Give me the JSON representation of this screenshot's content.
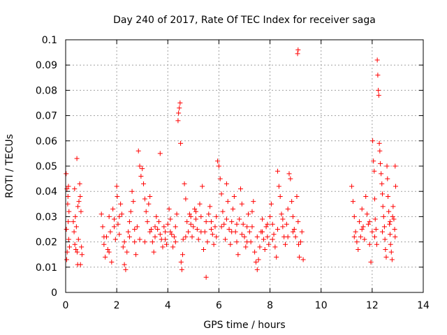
{
  "chart_data": {
    "type": "scatter",
    "title": "Day 240 of 2017, Rate Of TEC Index for receiver saga",
    "xlabel": "GPS time / hours",
    "ylabel": "ROTI / TECUs",
    "xlim": [
      0,
      14
    ],
    "ylim": [
      0,
      0.1
    ],
    "x_ticks": [
      0,
      2,
      4,
      6,
      8,
      10,
      12,
      14
    ],
    "x_tick_labels": [
      "0",
      "2",
      "4",
      "6",
      "8",
      "10",
      "12",
      "14"
    ],
    "y_ticks": [
      0,
      0.01,
      0.02,
      0.03,
      0.04,
      0.05,
      0.06,
      0.07,
      0.08,
      0.09,
      0.1
    ],
    "y_tick_labels": [
      "0",
      "0.01",
      "0.02",
      "0.03",
      "0.04",
      "0.05",
      "0.06",
      "0.07",
      "0.08",
      "0.09",
      "0.1"
    ],
    "grid": true,
    "marker": "+",
    "color": "#ff0000",
    "series": [
      {
        "name": "ROTI",
        "points": [
          [
            0.02,
            0.047
          ],
          [
            0.05,
            0.041
          ],
          [
            0.08,
            0.035
          ],
          [
            0.1,
            0.028
          ],
          [
            0.12,
            0.021
          ],
          [
            0.15,
            0.018
          ],
          [
            0.03,
            0.025
          ],
          [
            0.06,
            0.016
          ],
          [
            0.09,
            0.038
          ],
          [
            0.11,
            0.042
          ],
          [
            0.13,
            0.032
          ],
          [
            0.04,
            0.013
          ],
          [
            0.3,
            0.028
          ],
          [
            0.33,
            0.024
          ],
          [
            0.36,
            0.019
          ],
          [
            0.38,
            0.03
          ],
          [
            0.4,
            0.017
          ],
          [
            0.42,
            0.026
          ],
          [
            0.44,
            0.053
          ],
          [
            0.45,
            0.016
          ],
          [
            0.47,
            0.011
          ],
          [
            0.5,
            0.021
          ],
          [
            0.52,
            0.036
          ],
          [
            0.55,
            0.043
          ],
          [
            0.57,
            0.038
          ],
          [
            0.6,
            0.032
          ],
          [
            0.62,
            0.018
          ],
          [
            0.64,
            0.015
          ],
          [
            0.35,
            0.041
          ],
          [
            0.48,
            0.034
          ],
          [
            0.58,
            0.011
          ],
          [
            1.4,
            0.031
          ],
          [
            1.45,
            0.026
          ],
          [
            1.5,
            0.019
          ],
          [
            1.55,
            0.014
          ],
          [
            1.6,
            0.022
          ],
          [
            1.65,
            0.017
          ],
          [
            1.7,
            0.03
          ],
          [
            1.75,
            0.024
          ],
          [
            1.8,
            0.012
          ],
          [
            1.85,
            0.033
          ],
          [
            1.9,
            0.029
          ],
          [
            1.95,
            0.021
          ],
          [
            2.0,
            0.042
          ],
          [
            2.02,
            0.038
          ],
          [
            2.05,
            0.027
          ],
          [
            2.1,
            0.023
          ],
          [
            2.15,
            0.035
          ],
          [
            2.2,
            0.031
          ],
          [
            2.25,
            0.018
          ],
          [
            2.3,
            0.011
          ],
          [
            2.35,
            0.009
          ],
          [
            2.4,
            0.016
          ],
          [
            2.45,
            0.024
          ],
          [
            2.5,
            0.028
          ],
          [
            2.55,
            0.032
          ],
          [
            2.6,
            0.04
          ],
          [
            2.65,
            0.036
          ],
          [
            2.7,
            0.02
          ],
          [
            2.75,
            0.015
          ],
          [
            2.8,
            0.026
          ],
          [
            2.85,
            0.056
          ],
          [
            2.9,
            0.05
          ],
          [
            2.95,
            0.046
          ],
          [
            3.0,
            0.049
          ],
          [
            3.05,
            0.043
          ],
          [
            3.1,
            0.037
          ],
          [
            3.15,
            0.032
          ],
          [
            3.2,
            0.028
          ],
          [
            3.25,
            0.035
          ],
          [
            3.3,
            0.038
          ],
          [
            3.35,
            0.025
          ],
          [
            3.4,
            0.02
          ],
          [
            3.45,
            0.016
          ],
          [
            3.5,
            0.022
          ],
          [
            3.55,
            0.03
          ],
          [
            3.6,
            0.025
          ],
          [
            3.65,
            0.028
          ],
          [
            3.7,
            0.055
          ],
          [
            3.75,
            0.021
          ],
          [
            3.8,
            0.018
          ],
          [
            3.85,
            0.026
          ],
          [
            3.9,
            0.024
          ],
          [
            3.95,
            0.019
          ],
          [
            4.0,
            0.027
          ],
          [
            4.05,
            0.033
          ],
          [
            4.1,
            0.029
          ],
          [
            4.15,
            0.023
          ],
          [
            4.2,
            0.018
          ],
          [
            4.25,
            0.022
          ],
          [
            4.3,
            0.026
          ],
          [
            4.35,
            0.031
          ],
          [
            4.4,
            0.068
          ],
          [
            4.42,
            0.071
          ],
          [
            4.45,
            0.073
          ],
          [
            4.48,
            0.075
          ],
          [
            4.5,
            0.059
          ],
          [
            4.52,
            0.012
          ],
          [
            4.55,
            0.009
          ],
          [
            4.58,
            0.015
          ],
          [
            4.6,
            0.021
          ],
          [
            4.65,
            0.043
          ],
          [
            4.7,
            0.037
          ],
          [
            4.75,
            0.028
          ],
          [
            4.8,
            0.024
          ],
          [
            4.85,
            0.031
          ],
          [
            4.9,
            0.027
          ],
          [
            4.95,
            0.022
          ],
          [
            5.0,
            0.026
          ],
          [
            5.05,
            0.033
          ],
          [
            5.1,
            0.029
          ],
          [
            5.15,
            0.025
          ],
          [
            5.2,
            0.021
          ],
          [
            5.25,
            0.035
          ],
          [
            5.3,
            0.03
          ],
          [
            5.35,
            0.042
          ],
          [
            5.4,
            0.017
          ],
          [
            5.45,
            0.024
          ],
          [
            5.5,
            0.006
          ],
          [
            5.55,
            0.02
          ],
          [
            5.6,
            0.031
          ],
          [
            5.65,
            0.034
          ],
          [
            5.7,
            0.028
          ],
          [
            5.75,
            0.023
          ],
          [
            5.8,
            0.019
          ],
          [
            5.85,
            0.026
          ],
          [
            5.9,
            0.03
          ],
          [
            5.95,
            0.052
          ],
          [
            6.0,
            0.05
          ],
          [
            6.05,
            0.045
          ],
          [
            6.1,
            0.039
          ],
          [
            6.15,
            0.032
          ],
          [
            6.2,
            0.027
          ],
          [
            6.25,
            0.021
          ],
          [
            6.3,
            0.043
          ],
          [
            6.35,
            0.036
          ],
          [
            6.4,
            0.025
          ],
          [
            6.45,
            0.019
          ],
          [
            6.5,
            0.028
          ],
          [
            6.55,
            0.033
          ],
          [
            6.6,
            0.038
          ],
          [
            6.65,
            0.024
          ],
          [
            6.7,
            0.02
          ],
          [
            6.75,
            0.015
          ],
          [
            6.8,
            0.029
          ],
          [
            6.85,
            0.041
          ],
          [
            6.9,
            0.035
          ],
          [
            6.95,
            0.027
          ],
          [
            7.0,
            0.022
          ],
          [
            7.05,
            0.018
          ],
          [
            7.1,
            0.026
          ],
          [
            7.15,
            0.031
          ],
          [
            7.2,
            0.024
          ],
          [
            7.25,
            0.02
          ],
          [
            7.3,
            0.032
          ],
          [
            7.35,
            0.036
          ],
          [
            7.4,
            0.016
          ],
          [
            7.45,
            0.012
          ],
          [
            7.5,
            0.009
          ],
          [
            7.55,
            0.013
          ],
          [
            7.6,
            0.018
          ],
          [
            7.65,
            0.024
          ],
          [
            7.7,
            0.029
          ],
          [
            7.75,
            0.021
          ],
          [
            7.8,
            0.017
          ],
          [
            7.85,
            0.026
          ],
          [
            7.9,
            0.022
          ],
          [
            7.95,
            0.019
          ],
          [
            8.0,
            0.03
          ],
          [
            8.05,
            0.035
          ],
          [
            8.1,
            0.027
          ],
          [
            8.15,
            0.023
          ],
          [
            8.2,
            0.018
          ],
          [
            8.25,
            0.014
          ],
          [
            8.3,
            0.048
          ],
          [
            8.35,
            0.042
          ],
          [
            8.4,
            0.038
          ],
          [
            8.45,
            0.031
          ],
          [
            8.5,
            0.026
          ],
          [
            8.55,
            0.022
          ],
          [
            8.6,
            0.019
          ],
          [
            8.65,
            0.027
          ],
          [
            8.7,
            0.033
          ],
          [
            8.75,
            0.047
          ],
          [
            8.8,
            0.045
          ],
          [
            8.85,
            0.036
          ],
          [
            8.9,
            0.03
          ],
          [
            8.95,
            0.025
          ],
          [
            9.0,
            0.022
          ],
          [
            9.05,
            0.038
          ],
          [
            9.08,
            0.0945
          ],
          [
            9.1,
            0.096
          ],
          [
            9.12,
            0.019
          ],
          [
            9.15,
            0.014
          ],
          [
            9.2,
            0.02
          ],
          [
            9.25,
            0.024
          ],
          [
            9.3,
            0.013
          ],
          [
            1.5,
            0.022
          ],
          [
            1.7,
            0.016
          ],
          [
            1.9,
            0.026
          ],
          [
            2.1,
            0.03
          ],
          [
            2.3,
            0.02
          ],
          [
            2.5,
            0.022
          ],
          [
            2.7,
            0.025
          ],
          [
            2.9,
            0.021
          ],
          [
            3.1,
            0.02
          ],
          [
            3.3,
            0.024
          ],
          [
            3.5,
            0.026
          ],
          [
            3.7,
            0.023
          ],
          [
            3.9,
            0.021
          ],
          [
            4.1,
            0.024
          ],
          [
            4.3,
            0.02
          ],
          [
            4.7,
            0.022
          ],
          [
            4.9,
            0.03
          ],
          [
            5.1,
            0.032
          ],
          [
            5.3,
            0.024
          ],
          [
            5.5,
            0.028
          ],
          [
            5.7,
            0.025
          ],
          [
            5.9,
            0.022
          ],
          [
            6.1,
            0.026
          ],
          [
            6.3,
            0.029
          ],
          [
            6.5,
            0.024
          ],
          [
            6.7,
            0.027
          ],
          [
            6.9,
            0.023
          ],
          [
            7.1,
            0.02
          ],
          [
            7.3,
            0.026
          ],
          [
            7.5,
            0.022
          ],
          [
            7.7,
            0.024
          ],
          [
            7.9,
            0.027
          ],
          [
            8.1,
            0.021
          ],
          [
            8.3,
            0.025
          ],
          [
            8.5,
            0.029
          ],
          [
            8.7,
            0.022
          ],
          [
            8.9,
            0.024
          ],
          [
            9.1,
            0.028
          ],
          [
            11.2,
            0.042
          ],
          [
            11.25,
            0.036
          ],
          [
            11.3,
            0.03
          ],
          [
            11.35,
            0.024
          ],
          [
            11.4,
            0.02
          ],
          [
            11.45,
            0.017
          ],
          [
            11.5,
            0.028
          ],
          [
            11.55,
            0.022
          ],
          [
            11.6,
            0.033
          ],
          [
            11.65,
            0.026
          ],
          [
            11.7,
            0.021
          ],
          [
            11.75,
            0.038
          ],
          [
            11.8,
            0.031
          ],
          [
            11.85,
            0.027
          ],
          [
            11.9,
            0.019
          ],
          [
            11.95,
            0.012
          ],
          [
            12.0,
            0.024
          ],
          [
            12.02,
            0.06
          ],
          [
            12.05,
            0.052
          ],
          [
            12.08,
            0.048
          ],
          [
            12.1,
            0.037
          ],
          [
            12.12,
            0.029
          ],
          [
            12.15,
            0.025
          ],
          [
            12.18,
            0.019
          ],
          [
            12.2,
            0.092
          ],
          [
            12.22,
            0.086
          ],
          [
            12.24,
            0.08
          ],
          [
            12.26,
            0.078
          ],
          [
            12.28,
            0.059
          ],
          [
            12.3,
            0.056
          ],
          [
            12.32,
            0.051
          ],
          [
            12.35,
            0.047
          ],
          [
            12.38,
            0.043
          ],
          [
            12.4,
            0.039
          ],
          [
            12.42,
            0.034
          ],
          [
            12.45,
            0.03
          ],
          [
            12.48,
            0.026
          ],
          [
            12.5,
            0.021
          ],
          [
            12.52,
            0.017
          ],
          [
            12.55,
            0.014
          ],
          [
            12.58,
            0.05
          ],
          [
            12.6,
            0.045
          ],
          [
            12.62,
            0.038
          ],
          [
            12.65,
            0.032
          ],
          [
            12.68,
            0.027
          ],
          [
            12.7,
            0.023
          ],
          [
            12.72,
            0.019
          ],
          [
            12.75,
            0.016
          ],
          [
            12.78,
            0.013
          ],
          [
            12.8,
            0.03
          ],
          [
            12.82,
            0.034
          ],
          [
            12.85,
            0.029
          ],
          [
            12.88,
            0.025
          ],
          [
            12.9,
            0.05
          ],
          [
            12.92,
            0.042
          ],
          [
            11.3,
            0.022
          ],
          [
            11.6,
            0.025
          ],
          [
            11.9,
            0.028
          ],
          [
            12.1,
            0.022
          ],
          [
            12.4,
            0.024
          ],
          [
            12.7,
            0.028
          ],
          [
            12.9,
            0.022
          ]
        ]
      }
    ]
  }
}
